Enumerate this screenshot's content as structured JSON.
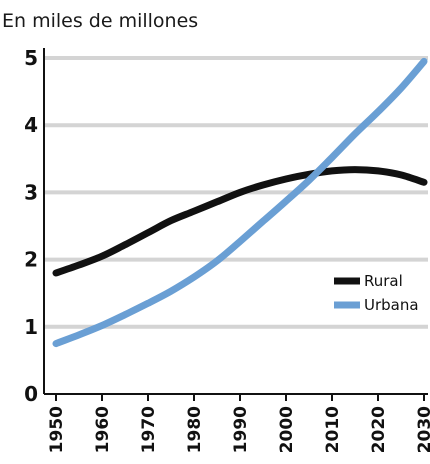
{
  "chart_data": {
    "type": "line",
    "title": "En miles de millones",
    "xlabel": "",
    "ylabel": "",
    "xlim": [
      1950,
      2030
    ],
    "ylim": [
      0,
      5
    ],
    "x_ticks": [
      "1950",
      "1960",
      "1970",
      "1980",
      "1990",
      "2000",
      "2010",
      "2020",
      "2030"
    ],
    "y_ticks": [
      "0",
      "1",
      "2",
      "3",
      "4",
      "5"
    ],
    "grid": "horizontal",
    "legend": "right",
    "x": [
      1950,
      1955,
      1960,
      1965,
      1970,
      1975,
      1980,
      1985,
      1990,
      1995,
      2000,
      2005,
      2010,
      2015,
      2020,
      2025,
      2030
    ],
    "series": [
      {
        "name": "Rural",
        "color": "#111111",
        "values": [
          1.8,
          1.92,
          2.05,
          2.22,
          2.4,
          2.58,
          2.72,
          2.86,
          3.0,
          3.11,
          3.2,
          3.27,
          3.32,
          3.34,
          3.32,
          3.26,
          3.15
        ]
      },
      {
        "name": "Urbana",
        "color": "#6a9fd4",
        "values": [
          0.75,
          0.88,
          1.02,
          1.18,
          1.35,
          1.53,
          1.74,
          1.98,
          2.27,
          2.57,
          2.87,
          3.18,
          3.52,
          3.87,
          4.2,
          4.55,
          4.95
        ]
      }
    ]
  }
}
